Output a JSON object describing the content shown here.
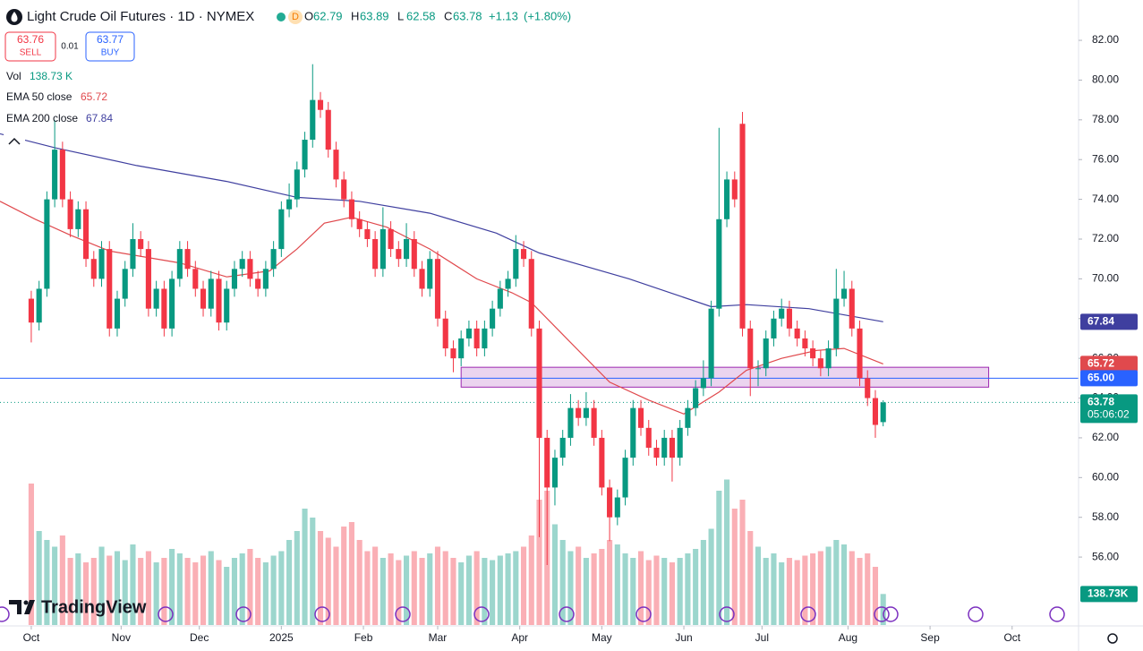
{
  "header": {
    "title": "Light Crude Oil Futures · 1D · NYMEX",
    "interval_badge": "D",
    "ohlc": [
      {
        "label": "O",
        "value": "62.79"
      },
      {
        "label": "H",
        "value": "63.89"
      },
      {
        "label": "L",
        "value": "62.58"
      },
      {
        "label": "C",
        "value": "63.78"
      }
    ],
    "change": "+1.13",
    "change_pct": "(+1.80%)",
    "sell_price": "63.76",
    "sell_label": "SELL",
    "spread": "0.01",
    "buy_price": "63.77",
    "buy_label": "BUY",
    "volume_label": "Vol",
    "volume_value": "138.73 K"
  },
  "brand": "TradingView",
  "chart_data": {
    "type": "candlestick",
    "up_color": "#089981",
    "down_color": "#f23645",
    "xlim": [
      -8,
      268
    ],
    "xticks": [
      {
        "value": 0,
        "label": "Oct"
      },
      {
        "value": 23,
        "label": "Nov"
      },
      {
        "value": 43,
        "label": "Dec"
      },
      {
        "value": 64,
        "label": "2025"
      },
      {
        "value": 85,
        "label": "Feb"
      },
      {
        "value": 104,
        "label": "Mar"
      },
      {
        "value": 125,
        "label": "Apr"
      },
      {
        "value": 146,
        "label": "May"
      },
      {
        "value": 167,
        "label": "Jun"
      },
      {
        "value": 187,
        "label": "Jul"
      },
      {
        "value": 209,
        "label": "Aug"
      },
      {
        "value": 230,
        "label": "Sep"
      },
      {
        "value": 251,
        "label": "Oct"
      }
    ],
    "ylim": [
      52.58,
      84.03
    ],
    "yticks": [
      {
        "value": 56,
        "label": "56.00"
      },
      {
        "value": 58,
        "label": "58.00"
      },
      {
        "value": 60,
        "label": "60.00"
      },
      {
        "value": 62,
        "label": "62.00"
      },
      {
        "value": 64,
        "label": "64.00"
      },
      {
        "value": 66,
        "label": "66.00"
      },
      {
        "value": 68,
        "label": "68.00"
      },
      {
        "value": 70,
        "label": "70.00"
      },
      {
        "value": 72,
        "label": "72.00"
      },
      {
        "value": 74,
        "label": "74.00"
      },
      {
        "value": 76,
        "label": "76.00"
      },
      {
        "value": 78,
        "label": "78.00"
      },
      {
        "value": 80,
        "label": "80.00"
      },
      {
        "value": 82,
        "label": "82.00"
      }
    ],
    "x": [
      0,
      2,
      4,
      6,
      8,
      10,
      12,
      14,
      16,
      18,
      20,
      22,
      24,
      26,
      28,
      30,
      32,
      34,
      36,
      38,
      40,
      42,
      44,
      46,
      48,
      50,
      52,
      54,
      56,
      58,
      60,
      62,
      64,
      66,
      68,
      70,
      72,
      74,
      76,
      78,
      80,
      82,
      84,
      86,
      88,
      90,
      92,
      94,
      96,
      98,
      100,
      102,
      104,
      106,
      108,
      110,
      112,
      114,
      116,
      118,
      120,
      122,
      124,
      126,
      128,
      130,
      132,
      134,
      136,
      138,
      140,
      142,
      144,
      146,
      148,
      150,
      152,
      154,
      156,
      158,
      160,
      162,
      164,
      166,
      168,
      170,
      172,
      174,
      176,
      178,
      180,
      182,
      184,
      186,
      188,
      190,
      192,
      194,
      196,
      198,
      200,
      202,
      204,
      206,
      208,
      210,
      212,
      214,
      216,
      218
    ],
    "open": [
      69,
      67.8,
      69.5,
      74,
      76.5,
      74,
      72.5,
      73.5,
      71,
      70,
      71.5,
      67.5,
      69,
      70.5,
      72,
      71.5,
      68.5,
      69.5,
      67.5,
      70,
      71.5,
      70.5,
      69.5,
      68.5,
      70,
      67.8,
      69.5,
      70.5,
      71,
      70,
      69.5,
      70.5,
      71.5,
      73.5,
      74,
      75.5,
      77,
      79,
      78.5,
      76.5,
      75,
      74,
      73,
      72.5,
      72,
      70.5,
      72.5,
      71.5,
      71,
      72,
      70.5,
      69.5,
      71,
      68,
      66.5,
      66,
      67,
      67.5,
      66.5,
      67.5,
      68.5,
      69.5,
      70,
      71.5,
      71,
      67.5,
      62,
      59.5,
      61,
      62,
      63.5,
      63,
      63.5,
      62,
      59.5,
      58,
      59,
      61,
      63.5,
      62.5,
      61.5,
      61,
      62,
      61,
      62.5,
      63.5,
      64.5,
      65,
      68.5,
      73,
      75,
      77.8,
      67.5,
      65.5,
      65.5,
      67,
      68,
      68.5,
      67.5,
      67,
      66.5,
      66,
      65.5,
      66.5,
      69,
      69.5,
      67.5,
      65,
      64,
      62.79
    ],
    "high": [
      69.4,
      69.9,
      74.4,
      78,
      76.9,
      74.4,
      73.9,
      73.9,
      71.4,
      71.9,
      71.9,
      69.4,
      70.9,
      72.8,
      72.4,
      71.9,
      69.9,
      69.9,
      70.4,
      71.9,
      71.9,
      70.9,
      69.9,
      70.4,
      70.4,
      69.9,
      70.9,
      71.4,
      71.4,
      70.4,
      70.9,
      71.9,
      73.9,
      74.8,
      75.9,
      77.4,
      80.8,
      79.4,
      78.9,
      76.9,
      75.4,
      74.4,
      73.4,
      72.9,
      72.4,
      73.6,
      72.9,
      71.9,
      72.8,
      72.4,
      70.9,
      71.4,
      71.4,
      68.4,
      66.9,
      67.4,
      67.9,
      67.9,
      67.9,
      68.9,
      69.9,
      70.4,
      72.2,
      71.9,
      71.4,
      67.9,
      62.4,
      61.4,
      62.4,
      64.2,
      63.9,
      64.3,
      63.9,
      62.4,
      59.9,
      59.4,
      61.4,
      63.9,
      63.9,
      62.9,
      61.9,
      62.4,
      62.4,
      62.9,
      63.9,
      64.9,
      65.9,
      68.9,
      77.6,
      75.4,
      75.4,
      78.4,
      67.9,
      65.9,
      67.4,
      68.4,
      69,
      68.9,
      67.9,
      67.4,
      66.9,
      66.4,
      66.9,
      70.5,
      70.4,
      69.9,
      67.9,
      65.4,
      64.4,
      63.89
    ],
    "low": [
      66.8,
      67.4,
      69.1,
      73.6,
      73.6,
      72.1,
      72.1,
      70.6,
      69.6,
      69.6,
      67.1,
      67.1,
      68.6,
      70.1,
      71.1,
      68.1,
      68.1,
      67.1,
      67.1,
      69.6,
      70.1,
      69.1,
      68.1,
      68.1,
      67.4,
      67.4,
      69.1,
      70.1,
      69.6,
      69.1,
      69.1,
      70.1,
      71.1,
      73.1,
      73.6,
      75.1,
      76.6,
      78.1,
      76.1,
      74.6,
      73.6,
      72.6,
      72.1,
      71.6,
      70.1,
      70.1,
      71.1,
      70.6,
      70.6,
      70.1,
      69.1,
      69.1,
      67.6,
      66.1,
      65.3,
      65.6,
      66.6,
      66.1,
      66.1,
      67.1,
      68.1,
      69.1,
      69.6,
      70.6,
      67.1,
      57,
      55.6,
      58.6,
      60.6,
      61.6,
      62.6,
      62.6,
      61.6,
      59.1,
      56.8,
      57.6,
      58.6,
      60.6,
      62.1,
      61.1,
      60.6,
      60.6,
      59.8,
      60.6,
      62.1,
      63.1,
      64.1,
      64.6,
      68.1,
      72.6,
      73.6,
      67.1,
      64.1,
      64.6,
      65.1,
      66.6,
      67.6,
      67.1,
      66.6,
      66.1,
      65.6,
      65.1,
      65.1,
      66.1,
      68.6,
      67.1,
      64.6,
      63.6,
      62,
      62.58
    ],
    "close": [
      67.8,
      69.5,
      74,
      76.5,
      74,
      72.5,
      73.5,
      71,
      70,
      71.5,
      67.5,
      69,
      70.5,
      72,
      71.5,
      68.5,
      69.5,
      67.5,
      70,
      71.5,
      70.5,
      69.5,
      68.5,
      70,
      67.8,
      69.5,
      70.5,
      71,
      70,
      69.5,
      70.5,
      71.5,
      73.5,
      74,
      75.5,
      77,
      79,
      78.5,
      76.5,
      75,
      74,
      73,
      72.5,
      72,
      70.5,
      72.5,
      71.5,
      71,
      72,
      70.5,
      69.5,
      71,
      68,
      66.5,
      66,
      67,
      67.5,
      66.5,
      67.5,
      68.5,
      69.5,
      70,
      71.5,
      71,
      67.5,
      62,
      59.5,
      61,
      62,
      63.5,
      63,
      63.5,
      62,
      59.5,
      58,
      59,
      61,
      63.5,
      62.5,
      61.5,
      61,
      62,
      61,
      62.5,
      63.5,
      64.5,
      65,
      68.5,
      73,
      75,
      74,
      67.5,
      65.5,
      65.5,
      67,
      68,
      68.5,
      67.5,
      67,
      66.5,
      66,
      65.5,
      66.5,
      69,
      69.5,
      67.5,
      65,
      64,
      62.65,
      63.78
    ],
    "volume": [
      632,
      420,
      380,
      350,
      400,
      300,
      320,
      280,
      300,
      350,
      310,
      330,
      290,
      360,
      300,
      330,
      280,
      300,
      340,
      320,
      300,
      280,
      310,
      330,
      290,
      260,
      300,
      320,
      340,
      300,
      280,
      310,
      330,
      380,
      420,
      520,
      480,
      420,
      390,
      350,
      440,
      460,
      380,
      330,
      350,
      300,
      320,
      290,
      310,
      330,
      300,
      320,
      350,
      330,
      300,
      280,
      310,
      330,
      300,
      290,
      310,
      320,
      330,
      350,
      400,
      560,
      600,
      450,
      380,
      330,
      350,
      300,
      320,
      340,
      380,
      360,
      320,
      300,
      330,
      290,
      310,
      300,
      280,
      300,
      320,
      340,
      380,
      430,
      600,
      650,
      520,
      560,
      420,
      350,
      300,
      320,
      280,
      300,
      290,
      310,
      320,
      330,
      350,
      380,
      360,
      330,
      300,
      320,
      260,
      138.73
    ],
    "volume_lim": [
      0,
      1000
    ],
    "volume_badge": "138.73K",
    "countdown": "05:06:02",
    "ema50": {
      "name": "EMA 50 close",
      "color": "#e0494d",
      "x": [
        -8,
        1,
        10,
        20,
        38,
        50,
        61,
        68,
        75,
        82,
        91,
        102,
        114,
        123,
        128,
        135,
        148,
        158,
        167,
        176,
        183,
        192,
        201,
        208,
        218
      ],
      "values": [
        73.9,
        73.0,
        72.2,
        71.4,
        70.8,
        70.1,
        70.4,
        71.5,
        72.8,
        73.1,
        72.6,
        71.5,
        70.0,
        69.3,
        68.8,
        67.4,
        64.8,
        63.9,
        63.2,
        64.3,
        65.4,
        66.0,
        66.4,
        66.5,
        65.72
      ]
    },
    "ema200": {
      "name": "EMA 200 close",
      "color": "#3f3f9f",
      "x": [
        -8,
        6,
        27,
        50,
        68,
        84,
        102,
        119,
        130,
        153,
        174,
        183,
        199,
        218
      ],
      "values": [
        77.3,
        76.6,
        75.7,
        74.9,
        74.1,
        73.9,
        73.3,
        72.3,
        71.3,
        70.0,
        68.6,
        68.7,
        68.5,
        67.84
      ]
    },
    "hline": {
      "value": 65,
      "label": "65.00",
      "color": "#2962ff"
    },
    "zone": {
      "x": [
        110,
        245
      ],
      "y": [
        64.55,
        65.55
      ],
      "color": "#9c27b0"
    }
  }
}
